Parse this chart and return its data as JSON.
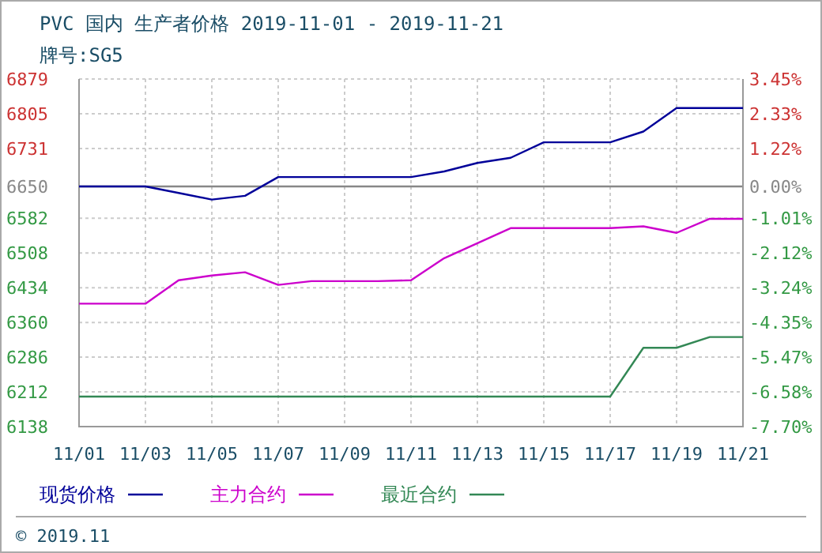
{
  "chart_data": {
    "type": "line",
    "title": "PVC 国内 生产者价格 2019-11-01 - 2019-11-21",
    "subtitle": "牌号:SG5",
    "annotations": [
      "© 2019.11"
    ],
    "x": [
      "2019-11-01",
      "2019-11-02",
      "2019-11-03",
      "2019-11-04",
      "2019-11-05",
      "2019-11-06",
      "2019-11-07",
      "2019-11-08",
      "2019-11-09",
      "2019-11-10",
      "2019-11-11",
      "2019-11-12",
      "2019-11-13",
      "2019-11-14",
      "2019-11-15",
      "2019-11-16",
      "2019-11-17",
      "2019-11-18",
      "2019-11-19",
      "2019-11-20",
      "2019-11-21"
    ],
    "series": [
      {
        "name": "现货价格",
        "color": "#000099",
        "values": [
          6650,
          6650,
          6650,
          6636,
          6622,
          6630,
          6670,
          6670,
          6670,
          6670,
          6670,
          6682,
          6700,
          6711,
          6744,
          6744,
          6744,
          6767,
          6817,
          6817,
          6817
        ]
      },
      {
        "name": "主力合约",
        "color": "#cc00cc",
        "values": [
          6400,
          6400,
          6400,
          6450,
          6460,
          6467,
          6440,
          6448,
          6448,
          6448,
          6450,
          6497,
          6529,
          6561,
          6561,
          6561,
          6561,
          6565,
          6551,
          6581,
          6581
        ]
      },
      {
        "name": "最近合约",
        "color": "#338855",
        "values": [
          6202,
          6202,
          6202,
          6202,
          6202,
          6202,
          6202,
          6202,
          6202,
          6202,
          6202,
          6202,
          6202,
          6202,
          6202,
          6202,
          6202,
          6306,
          6306,
          6329,
          6329
        ]
      }
    ],
    "xlim": [
      "2019-11-01",
      "2019-11-21"
    ],
    "xticks": [
      {
        "value": "2019-11-01",
        "label": "11/01"
      },
      {
        "value": "2019-11-03",
        "label": "11/03"
      },
      {
        "value": "2019-11-05",
        "label": "11/05"
      },
      {
        "value": "2019-11-07",
        "label": "11/07"
      },
      {
        "value": "2019-11-09",
        "label": "11/09"
      },
      {
        "value": "2019-11-11",
        "label": "11/11"
      },
      {
        "value": "2019-11-13",
        "label": "11/13"
      },
      {
        "value": "2019-11-15",
        "label": "11/15"
      },
      {
        "value": "2019-11-17",
        "label": "11/17"
      },
      {
        "value": "2019-11-19",
        "label": "11/19"
      },
      {
        "value": "2019-11-21",
        "label": "11/21"
      }
    ],
    "ylim": [
      6138,
      6879
    ],
    "yticks": [
      6138,
      6212,
      6286,
      6360,
      6434,
      6508,
      6582,
      6650,
      6731,
      6805,
      6879
    ],
    "y2lim": [
      -7.7,
      3.45
    ],
    "y2ticks": [
      {
        "value": -7.7,
        "label": "-7.70%"
      },
      {
        "value": -6.58,
        "label": "-6.58%"
      },
      {
        "value": -5.47,
        "label": "-5.47%"
      },
      {
        "value": -4.35,
        "label": "-4.35%"
      },
      {
        "value": -3.24,
        "label": "-3.24%"
      },
      {
        "value": -2.12,
        "label": "-2.12%"
      },
      {
        "value": -1.01,
        "label": "-1.01%"
      },
      {
        "value": 0,
        "label": "0.00%"
      },
      {
        "value": 1.22,
        "label": "1.22%"
      },
      {
        "value": 2.33,
        "label": "2.33%"
      },
      {
        "value": 3.45,
        "label": "3.45%"
      }
    ],
    "ref_lines": [
      {
        "axis": "y",
        "value": 6650,
        "color": "#888888"
      }
    ],
    "grid": true,
    "legend": "bottom",
    "line_style": "solid",
    "marker": "none"
  }
}
